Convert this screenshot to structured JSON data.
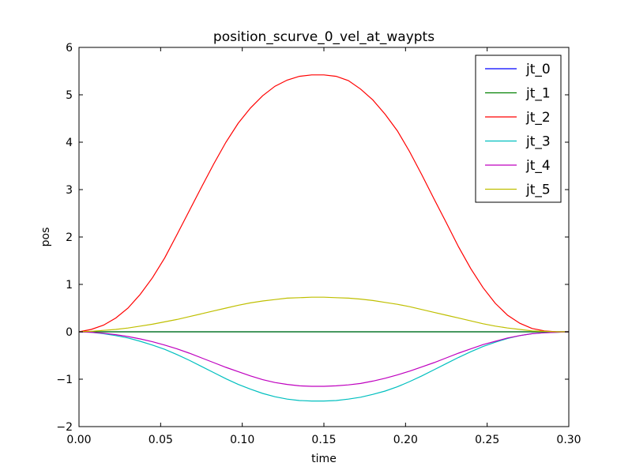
{
  "chart_data": {
    "type": "line",
    "title": "position_scurve_0_vel_at_waypts",
    "xlabel": "time",
    "ylabel": "pos",
    "xlim": [
      0.0,
      0.3
    ],
    "ylim": [
      -2,
      6
    ],
    "xticks": [
      "0.00",
      "0.05",
      "0.10",
      "0.15",
      "0.20",
      "0.25",
      "0.30"
    ],
    "yticks": [
      "−2",
      "−1",
      "0",
      "1",
      "2",
      "3",
      "4",
      "5",
      "6"
    ],
    "grid": false,
    "legend_position": "top-right",
    "x": [
      0.0,
      0.0075,
      0.015,
      0.0225,
      0.03,
      0.0375,
      0.045,
      0.0525,
      0.06,
      0.0675,
      0.075,
      0.0825,
      0.09,
      0.0975,
      0.105,
      0.1125,
      0.12,
      0.1275,
      0.135,
      0.1425,
      0.15,
      0.1575,
      0.165,
      0.1725,
      0.18,
      0.1875,
      0.195,
      0.2025,
      0.21,
      0.2175,
      0.225,
      0.2325,
      0.24,
      0.2475,
      0.255,
      0.2625,
      0.27,
      0.2775,
      0.285,
      0.2925,
      0.3
    ],
    "series": [
      {
        "name": "jt_0",
        "color": "#0000ff",
        "values": [
          0,
          0,
          0,
          0,
          0,
          0,
          0,
          0,
          0,
          0,
          0,
          0,
          0,
          0,
          0,
          0,
          0,
          0,
          0,
          0,
          0,
          0,
          0,
          0,
          0,
          0,
          0,
          0,
          0,
          0,
          0,
          0,
          0,
          0,
          0,
          0,
          0,
          0,
          0,
          0,
          0
        ]
      },
      {
        "name": "jt_1",
        "color": "#008000",
        "values": [
          0,
          0,
          0,
          0,
          0,
          0,
          0,
          0,
          0,
          0,
          0,
          0,
          0,
          0,
          0,
          0,
          0,
          0,
          0,
          0,
          0,
          0,
          0,
          0,
          0,
          0,
          0,
          0,
          0,
          0,
          0,
          0,
          0,
          0,
          0,
          0,
          0,
          0,
          0,
          0,
          0
        ]
      },
      {
        "name": "jt_2",
        "color": "#ff0000",
        "values": [
          0.0,
          0.05,
          0.14,
          0.29,
          0.5,
          0.79,
          1.14,
          1.56,
          2.05,
          2.55,
          3.05,
          3.54,
          4.0,
          4.4,
          4.72,
          4.98,
          5.18,
          5.31,
          5.39,
          5.42,
          5.42,
          5.39,
          5.3,
          5.12,
          4.89,
          4.59,
          4.24,
          3.8,
          3.31,
          2.8,
          2.3,
          1.79,
          1.33,
          0.93,
          0.6,
          0.35,
          0.18,
          0.07,
          0.02,
          0.0,
          0.0
        ]
      },
      {
        "name": "jt_3",
        "color": "#00bfbf",
        "values": [
          0.0,
          -0.01,
          -0.04,
          -0.08,
          -0.13,
          -0.2,
          -0.28,
          -0.37,
          -0.48,
          -0.6,
          -0.73,
          -0.86,
          -0.99,
          -1.11,
          -1.21,
          -1.3,
          -1.37,
          -1.42,
          -1.45,
          -1.46,
          -1.46,
          -1.45,
          -1.42,
          -1.38,
          -1.32,
          -1.25,
          -1.16,
          -1.05,
          -0.93,
          -0.8,
          -0.67,
          -0.54,
          -0.42,
          -0.31,
          -0.22,
          -0.14,
          -0.08,
          -0.04,
          -0.02,
          -0.01,
          0.0
        ]
      },
      {
        "name": "jt_4",
        "color": "#bf00bf",
        "values": [
          0.0,
          -0.01,
          -0.03,
          -0.06,
          -0.1,
          -0.15,
          -0.21,
          -0.28,
          -0.36,
          -0.45,
          -0.55,
          -0.65,
          -0.75,
          -0.84,
          -0.93,
          -1.01,
          -1.07,
          -1.11,
          -1.14,
          -1.15,
          -1.15,
          -1.14,
          -1.12,
          -1.09,
          -1.04,
          -0.98,
          -0.91,
          -0.83,
          -0.74,
          -0.65,
          -0.55,
          -0.45,
          -0.36,
          -0.27,
          -0.2,
          -0.13,
          -0.08,
          -0.04,
          -0.02,
          -0.01,
          0.0
        ]
      },
      {
        "name": "jt_5",
        "color": "#bfbf00",
        "values": [
          0.0,
          0.01,
          0.03,
          0.05,
          0.08,
          0.12,
          0.16,
          0.21,
          0.26,
          0.32,
          0.38,
          0.44,
          0.5,
          0.56,
          0.61,
          0.65,
          0.68,
          0.71,
          0.72,
          0.73,
          0.73,
          0.72,
          0.71,
          0.69,
          0.66,
          0.62,
          0.58,
          0.53,
          0.47,
          0.41,
          0.35,
          0.29,
          0.23,
          0.17,
          0.12,
          0.08,
          0.05,
          0.02,
          0.01,
          0.0,
          0.0
        ]
      }
    ]
  }
}
